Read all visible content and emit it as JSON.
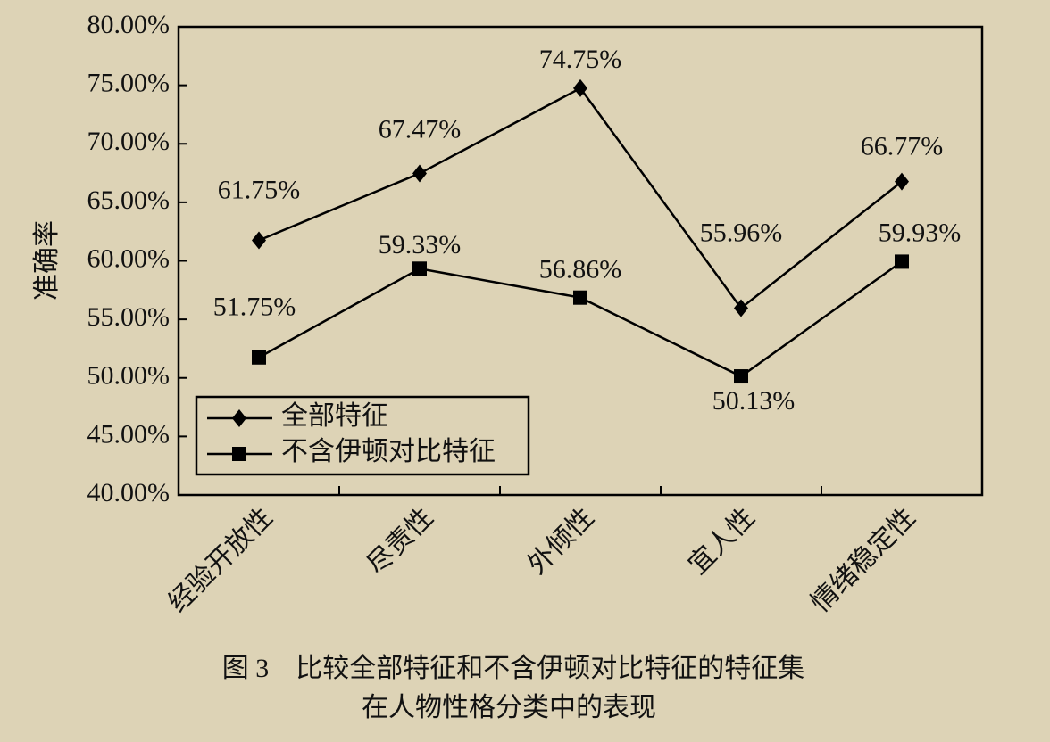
{
  "chart_data": {
    "type": "line",
    "categories": [
      "经验开放性",
      "尽责性",
      "外倾性",
      "宜人性",
      "情绪稳定性"
    ],
    "series": [
      {
        "name": "全部特征",
        "color": "#000000",
        "marker": "diamond",
        "values": [
          61.75,
          67.47,
          74.75,
          55.96,
          66.77
        ],
        "value_labels": [
          "61.75%",
          "67.47%",
          "74.75%",
          "55.96%",
          "66.77%"
        ]
      },
      {
        "name": "不含伊顿对比特征",
        "color": "#000000",
        "marker": "square",
        "values": [
          51.75,
          59.33,
          56.86,
          50.13,
          59.93
        ],
        "value_labels": [
          "51.75%",
          "59.33%",
          "56.86%",
          "50.13%",
          "59.93%"
        ]
      }
    ],
    "y_label": "准确率",
    "ylim": [
      40,
      80
    ],
    "yticks": [
      {
        "value": 40,
        "label": "40.00%"
      },
      {
        "value": 45,
        "label": "45.00%"
      },
      {
        "value": 50,
        "label": "50.00%"
      },
      {
        "value": 55,
        "label": "55.00%"
      },
      {
        "value": 60,
        "label": "60.00%"
      },
      {
        "value": 65,
        "label": "65.00%"
      },
      {
        "value": 70,
        "label": "70.00%"
      },
      {
        "value": 75,
        "label": "75.00%"
      },
      {
        "value": 80,
        "label": "80.00%"
      }
    ],
    "legend": "lower left",
    "grid": false
  },
  "caption": [
    "图 3　比较全部特征和不含伊顿对比特征的特征集",
    "在人物性格分类中的表现"
  ]
}
